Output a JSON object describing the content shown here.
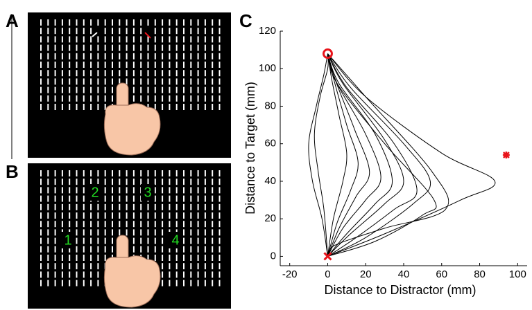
{
  "panels": [
    {
      "label": "A"
    },
    {
      "label": "B",
      "locations": [
        "1",
        "2",
        "3",
        "4"
      ]
    }
  ],
  "chart_data": {
    "type": "line",
    "panel_label": "C",
    "xlabel": "Distance to Distractor (mm)",
    "ylabel": "Distance to Target (mm)",
    "xlim": [
      -25,
      105
    ],
    "ylim": [
      -5,
      120
    ],
    "xticks": [
      -20,
      0,
      20,
      40,
      60,
      80,
      100
    ],
    "yticks": [
      0,
      20,
      40,
      60,
      80,
      100,
      120
    ],
    "line_color": "#000000",
    "series": [
      {
        "x": [
          0,
          30,
          70,
          88,
          60,
          20,
          0
        ],
        "y": [
          0,
          12,
          30,
          40,
          55,
          85,
          108
        ]
      },
      {
        "x": [
          0,
          20,
          45,
          54,
          40,
          12,
          0
        ],
        "y": [
          0,
          10,
          28,
          40,
          60,
          90,
          108
        ]
      },
      {
        "x": [
          0,
          25,
          50,
          56,
          30,
          5,
          0
        ],
        "y": [
          0,
          8,
          22,
          30,
          60,
          92,
          108
        ]
      },
      {
        "x": [
          0,
          4,
          30,
          62,
          55,
          20,
          0
        ],
        "y": [
          0,
          6,
          15,
          25,
          45,
          85,
          108
        ]
      },
      {
        "x": [
          0,
          15,
          35,
          47,
          35,
          10,
          0
        ],
        "y": [
          0,
          10,
          25,
          35,
          60,
          90,
          108
        ]
      },
      {
        "x": [
          0,
          12,
          30,
          40,
          30,
          8,
          0
        ],
        "y": [
          0,
          12,
          28,
          40,
          62,
          92,
          108
        ]
      },
      {
        "x": [
          0,
          10,
          25,
          34,
          25,
          6,
          0
        ],
        "y": [
          0,
          12,
          28,
          40,
          65,
          92,
          108
        ]
      },
      {
        "x": [
          0,
          8,
          20,
          28,
          20,
          5,
          0
        ],
        "y": [
          0,
          15,
          30,
          42,
          65,
          92,
          108
        ]
      },
      {
        "x": [
          0,
          6,
          15,
          22,
          14,
          4,
          0
        ],
        "y": [
          0,
          15,
          32,
          45,
          68,
          94,
          108
        ]
      },
      {
        "x": [
          0,
          5,
          12,
          16,
          10,
          3,
          0
        ],
        "y": [
          0,
          18,
          35,
          50,
          70,
          95,
          108
        ]
      },
      {
        "x": [
          0,
          3,
          8,
          10,
          6,
          2,
          0
        ],
        "y": [
          0,
          20,
          40,
          55,
          75,
          95,
          108
        ]
      },
      {
        "x": [
          0,
          -3,
          -8,
          -10,
          -6,
          -2,
          0
        ],
        "y": [
          0,
          20,
          40,
          60,
          80,
          97,
          108
        ]
      },
      {
        "x": [
          0,
          -2,
          -5,
          -7,
          -4,
          0,
          0
        ],
        "y": [
          0,
          25,
          45,
          65,
          85,
          100,
          108
        ]
      }
    ],
    "points": [
      {
        "x": 0,
        "y": 108,
        "marker": "o",
        "color": "#e8141b"
      },
      {
        "x": 0,
        "y": 0,
        "marker": "x",
        "color": "#e8141b"
      },
      {
        "x": 94,
        "y": 54,
        "marker": "*",
        "color": "#e8141b"
      }
    ]
  }
}
